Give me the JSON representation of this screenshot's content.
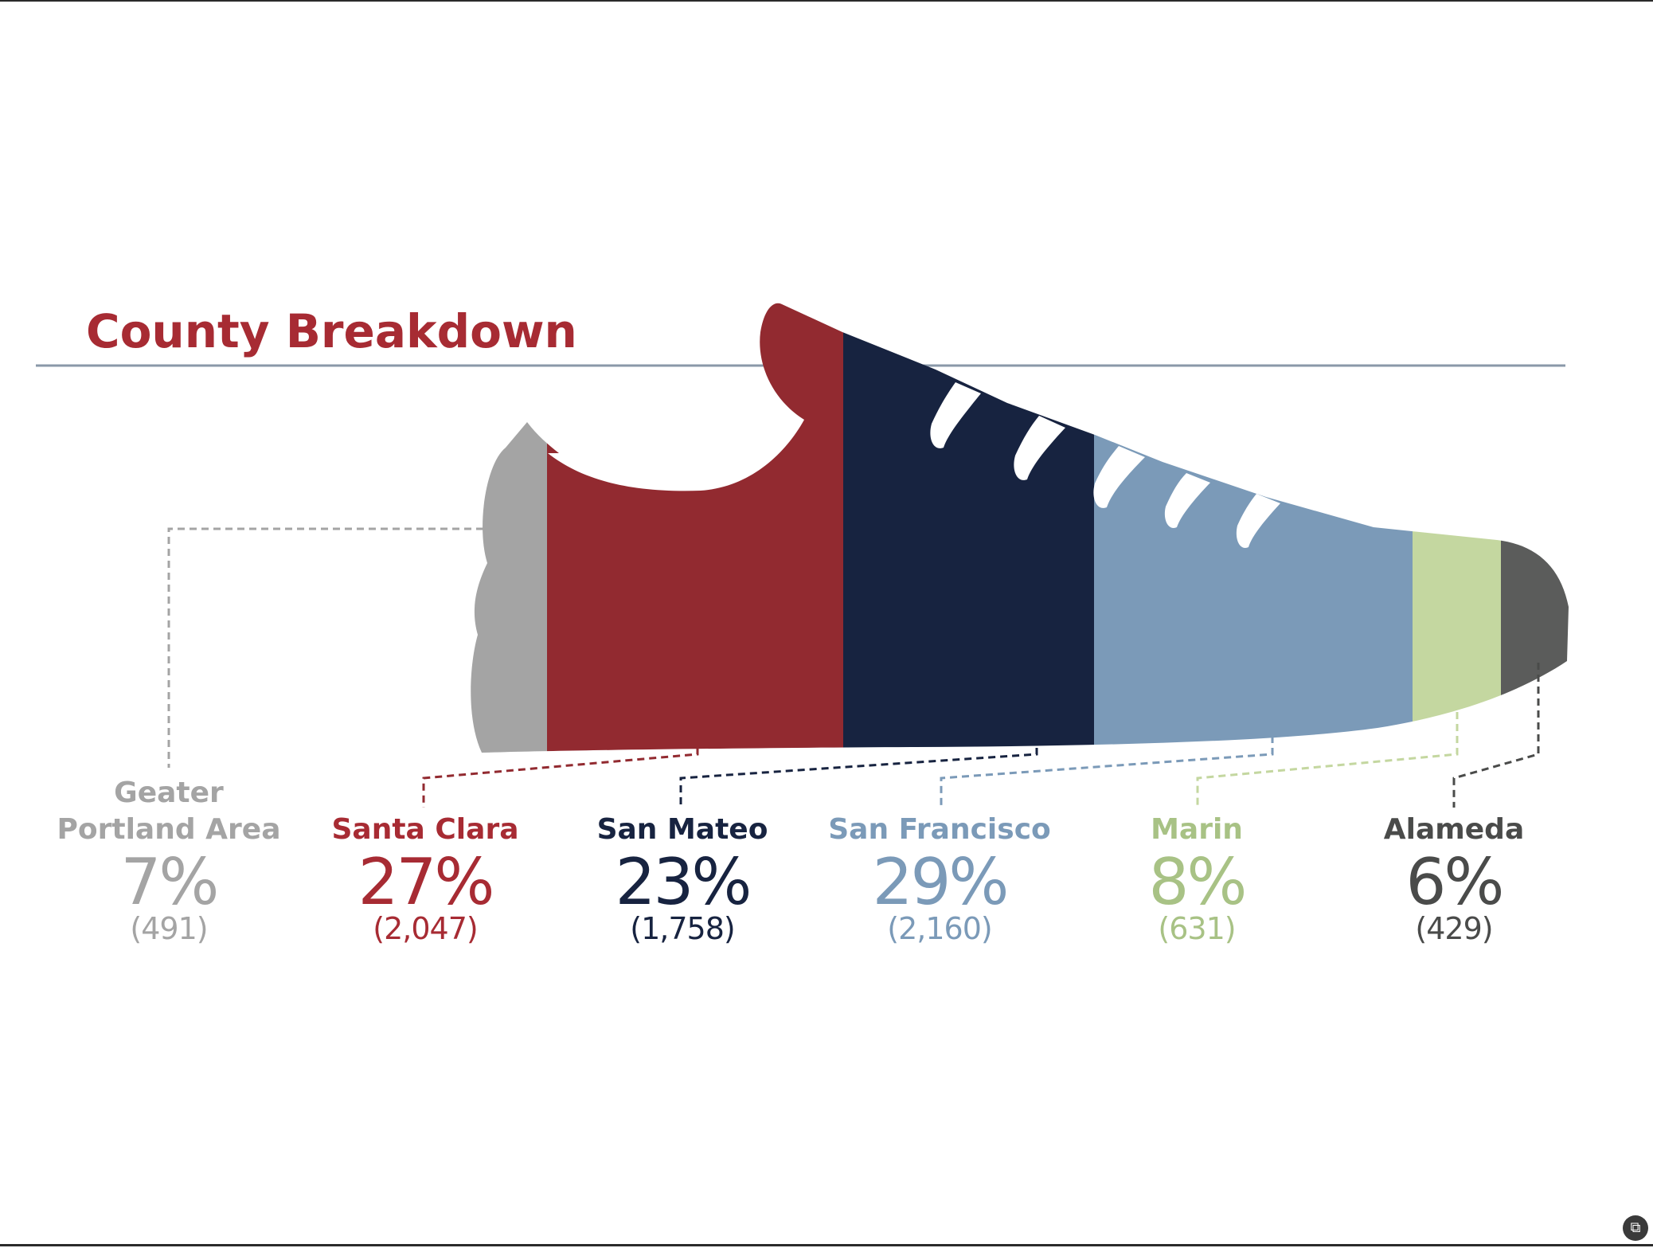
{
  "chart_data": {
    "type": "bar",
    "title": "County Breakdown",
    "unit": "percent",
    "series": [
      {
        "name": "Geater Portland Area",
        "name_lines": [
          "Geater",
          "Portland Area"
        ],
        "percent": 7,
        "percent_label": "7%",
        "count": 491,
        "count_label": "(491)",
        "color": "#a4a4a4"
      },
      {
        "name": "Santa Clara",
        "name_lines": [
          "Santa Clara"
        ],
        "percent": 27,
        "percent_label": "27%",
        "count": 2047,
        "count_label": "(2,047)",
        "color": "#922a30"
      },
      {
        "name": "San Mateo",
        "name_lines": [
          "San Mateo"
        ],
        "percent": 23,
        "percent_label": "23%",
        "count": 1758,
        "count_label": "(1,758)",
        "color": "#172340"
      },
      {
        "name": "San Francisco",
        "name_lines": [
          "San Francisco"
        ],
        "percent": 29,
        "percent_label": "29%",
        "count": 2160,
        "count_label": "(2,160)",
        "color": "#7b9ab8"
      },
      {
        "name": "Marin",
        "name_lines": [
          "Marin"
        ],
        "percent": 8,
        "percent_label": "8%",
        "count": 631,
        "count_label": "(631)",
        "color": "#c4d7a0"
      },
      {
        "name": "Alameda",
        "name_lines": [
          "Alameda"
        ],
        "percent": 6,
        "percent_label": "6%",
        "count": 429,
        "count_label": "(429)",
        "color": "#5b5c5b"
      }
    ]
  },
  "colors": {
    "title": "#a72b33",
    "rule": "#8a98a8",
    "background": "#ffffff",
    "gr_label": "#a4a4a4",
    "sc_label": "#a72b33",
    "sm_label": "#172340",
    "sf_label": "#7b9ab8",
    "marin_label": "#a8c285",
    "alameda_label": "#4a4b4a"
  },
  "corner_icon": "screen-capture-icon"
}
